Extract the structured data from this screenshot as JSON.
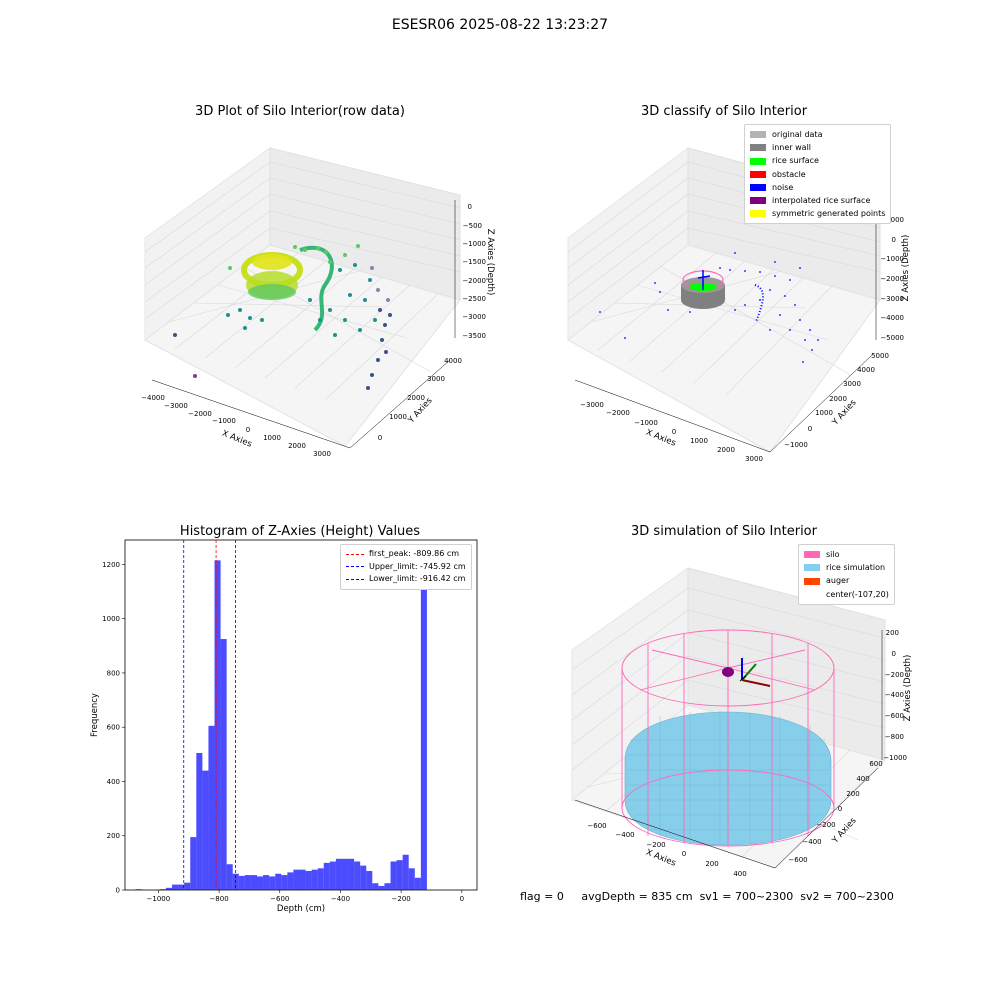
{
  "suptitle": "ESESR06 2025-08-22 13:23:27",
  "panels": {
    "raw": {
      "title": "3D Plot of Silo Interior(row data)",
      "xlabel": "X Axies",
      "ylabel": "Y Axies",
      "zlabel": "Z Axies (Depth)",
      "xticks": [
        "−4000",
        "−3000",
        "−2000",
        "−1000",
        "0",
        "1000",
        "2000",
        "3000"
      ],
      "yticks": [
        "0",
        "1000",
        "2000",
        "3000",
        "4000"
      ],
      "zticks": [
        "0",
        "−500",
        "−1000",
        "−1500",
        "−2000",
        "−2500",
        "−3000",
        "−3500"
      ]
    },
    "classify": {
      "title": "3D classify of Silo Interior",
      "xlabel": "X Axies",
      "ylabel": "Y Axies",
      "zlabel": "Z Axies (Depth)",
      "xticks": [
        "−3000",
        "−2000",
        "−1000",
        "0",
        "1000",
        "2000",
        "3000"
      ],
      "yticks": [
        "−1000",
        "0",
        "1000",
        "2000",
        "3000",
        "4000",
        "5000"
      ],
      "zticks": [
        "1000",
        "0",
        "−1000",
        "−2000",
        "−3000",
        "−4000",
        "−5000"
      ],
      "legend": [
        {
          "label": "original data",
          "color": "#b3b3b3"
        },
        {
          "label": "inner wall",
          "color": "#808080"
        },
        {
          "label": "rice surface",
          "color": "#00ff00"
        },
        {
          "label": "obstacle",
          "color": "#ff0000"
        },
        {
          "label": "noise",
          "color": "#0000ff"
        },
        {
          "label": "interpolated rice surface",
          "color": "#800080"
        },
        {
          "label": "symmetric generated points",
          "color": "#ffff00"
        }
      ]
    },
    "simulation": {
      "title": "3D simulation of Silo Interior",
      "xlabel": "X Axies",
      "ylabel": "Y Axies",
      "zlabel": "Z Axies (Depth)",
      "xticks": [
        "−600",
        "−400",
        "−200",
        "0",
        "200",
        "400"
      ],
      "yticks": [
        "−600",
        "−400",
        "−200",
        "0",
        "200",
        "400",
        "600"
      ],
      "zticks": [
        "200",
        "0",
        "−200",
        "−400",
        "−600",
        "−800",
        "−1000"
      ],
      "legend": [
        {
          "label": "silo",
          "color": "#ff69b4"
        },
        {
          "label": "rice simulation",
          "color": "#87ceeb"
        },
        {
          "label": "auger",
          "color": "#ff4500"
        },
        {
          "label": "center(-107,20)",
          "color": "#ffffff"
        }
      ]
    }
  },
  "chart_data": {
    "type": "bar",
    "title": "Histogram of Z-Axies (Height) Values",
    "xlabel": "Depth (cm)",
    "ylabel": "Frequency",
    "xlim": [
      -1110,
      50
    ],
    "ylim": [
      0,
      1290
    ],
    "bar_color": "#0000ff",
    "xticks": [
      -1000,
      -800,
      -600,
      -400,
      -200,
      0
    ],
    "xtick_labels": [
      "−1000",
      "−800",
      "−600",
      "−400",
      "−200",
      "0"
    ],
    "yticks": [
      0,
      200,
      400,
      600,
      800,
      1000,
      1200
    ],
    "bin_start": -1075,
    "bin_width": 20,
    "values": [
      3,
      0,
      0,
      0,
      3,
      8,
      20,
      20,
      27,
      195,
      505,
      440,
      605,
      1215,
      925,
      95,
      60,
      52,
      55,
      55,
      50,
      55,
      50,
      60,
      55,
      65,
      75,
      75,
      70,
      75,
      80,
      100,
      105,
      115,
      115,
      115,
      105,
      90,
      70,
      25,
      15,
      25,
      105,
      110,
      130,
      80,
      45,
      1220
    ],
    "lines": [
      {
        "label": "first_peak: -809.86 cm",
        "x": -809.86,
        "color": "#ff0000"
      },
      {
        "label": "Upper_limit: -745.92 cm",
        "x": -745.92,
        "color": "#0000ff"
      },
      {
        "label": "Lower_limit: -916.42 cm",
        "x": -916.42,
        "color": "#0000ff"
      }
    ]
  },
  "footer": {
    "flag": "flag = 0",
    "avg": "avgDepth = 835 cm",
    "sv1": "sv1 = 700~2300",
    "sv2": "sv2 = 700~2300"
  }
}
